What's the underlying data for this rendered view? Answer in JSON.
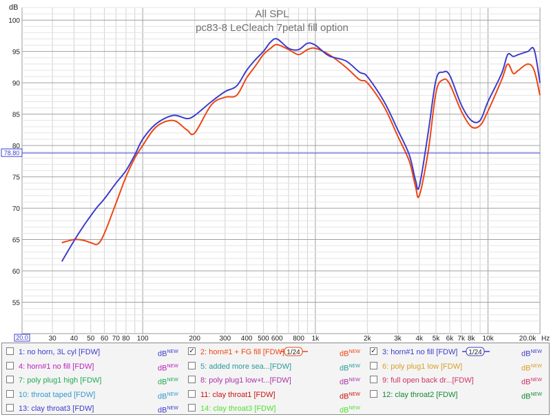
{
  "chart_data": {
    "type": "line",
    "title": "All SPL",
    "subtitle": "pc83-8 LeCleach 7petal fill option",
    "ylabel": "dB",
    "xunit": "Hz",
    "xscale": "log",
    "xlim": [
      20,
      20000
    ],
    "ylim": [
      50,
      102
    ],
    "grid": true,
    "y_ticks": [
      55,
      60,
      65,
      70,
      75,
      80,
      85,
      90,
      95,
      100
    ],
    "x_ticks": [
      {
        "v": 20,
        "label": "20.0"
      },
      {
        "v": 30,
        "label": "30"
      },
      {
        "v": 40,
        "label": "40"
      },
      {
        "v": 50,
        "label": "50"
      },
      {
        "v": 60,
        "label": "60"
      },
      {
        "v": 70,
        "label": "70"
      },
      {
        "v": 80,
        "label": "80"
      },
      {
        "v": 100,
        "label": "100"
      },
      {
        "v": 200,
        "label": "200"
      },
      {
        "v": 300,
        "label": "300"
      },
      {
        "v": 400,
        "label": "400"
      },
      {
        "v": 500,
        "label": "500"
      },
      {
        "v": 600,
        "label": "600"
      },
      {
        "v": 800,
        "label": "800"
      },
      {
        "v": 1000,
        "label": "1k"
      },
      {
        "v": 2000,
        "label": "2k"
      },
      {
        "v": 3000,
        "label": "3k"
      },
      {
        "v": 4000,
        "label": "4k"
      },
      {
        "v": 5000,
        "label": "5k"
      },
      {
        "v": 6000,
        "label": "6k"
      },
      {
        "v": 7000,
        "label": "7k"
      },
      {
        "v": 8000,
        "label": "8k"
      },
      {
        "v": 10000,
        "label": "10k"
      },
      {
        "v": 20000,
        "label": "20.0k"
      }
    ],
    "x_start_label": "20.0",
    "cursor": {
      "y": 78.8,
      "label": "78.80"
    },
    "series": [
      {
        "name": "1: no horn, 3L cyl [FDW]",
        "color": "#3c3ccc",
        "smoothing": "",
        "checked": false,
        "values": [],
        "x": []
      },
      {
        "name": "2: horn#1 + FG fill [FDW]",
        "color": "#ee4411",
        "smoothing": "1/24",
        "checked": true,
        "x": [
          34,
          40,
          45,
          50,
          55,
          60,
          70,
          80,
          90,
          100,
          120,
          150,
          180,
          200,
          250,
          300,
          350,
          400,
          450,
          500,
          550,
          600,
          700,
          800,
          900,
          1000,
          1200,
          1500,
          1800,
          2000,
          2500,
          3000,
          3500,
          3800,
          4000,
          4500,
          5000,
          5500,
          6000,
          7000,
          8000,
          9000,
          10000,
          12000,
          13000,
          14000,
          15000,
          17000,
          18500,
          20000
        ],
        "values": [
          64.5,
          65.0,
          64.9,
          64.5,
          64.3,
          66.0,
          70.8,
          75.0,
          78.0,
          80.0,
          83.0,
          84.0,
          82.5,
          82.0,
          86.5,
          87.7,
          88.0,
          90.8,
          92.7,
          94.5,
          95.5,
          96.1,
          95.3,
          94.5,
          95.3,
          95.5,
          94.5,
          92.5,
          90.5,
          90.0,
          86.2,
          81.5,
          77.5,
          73.5,
          72.0,
          79.0,
          88.5,
          90.5,
          89.8,
          85.5,
          83.0,
          83.2,
          85.5,
          90.5,
          93.0,
          91.5,
          92.0,
          93.0,
          92.0,
          88.0
        ]
      },
      {
        "name": "3: horn#1 no fill [FDW]",
        "color": "#3c3ccc",
        "smoothing": "1/24",
        "checked": true,
        "x": [
          34,
          40,
          45,
          50,
          55,
          60,
          70,
          80,
          90,
          100,
          120,
          150,
          180,
          200,
          250,
          300,
          350,
          400,
          450,
          500,
          550,
          600,
          700,
          800,
          900,
          1000,
          1200,
          1500,
          1800,
          2000,
          2500,
          3000,
          3500,
          3800,
          4000,
          4500,
          5000,
          5500,
          6000,
          7000,
          8000,
          9000,
          10000,
          12000,
          13000,
          14000,
          15000,
          17000,
          18500,
          20000
        ],
        "values": [
          61.5,
          64.8,
          67.0,
          68.8,
          70.3,
          71.5,
          74.0,
          76.0,
          78.5,
          81.0,
          83.5,
          84.8,
          84.3,
          84.8,
          87.0,
          88.6,
          89.5,
          92.0,
          93.7,
          95.0,
          96.5,
          97.0,
          95.5,
          95.3,
          96.3,
          96.0,
          94.3,
          93.5,
          91.7,
          91.0,
          87.0,
          82.5,
          78.5,
          74.5,
          73.5,
          82.0,
          90.5,
          91.7,
          91.2,
          86.5,
          84.0,
          84.0,
          87.0,
          91.5,
          94.5,
          94.2,
          94.5,
          95.0,
          95.3,
          90.0
        ]
      }
    ],
    "annotation_unit": "Hz"
  },
  "legend": {
    "db_label": "dB",
    "new_label": "NEW",
    "items": [
      {
        "label": "1: no horn, 3L cyl [FDW]",
        "color": "#3c3ccc",
        "checked": false,
        "smoothing": ""
      },
      {
        "label": "2: horn#1 + FG fill [FDW]",
        "color": "#ee4411",
        "checked": true,
        "smoothing": "1/24"
      },
      {
        "label": "3: horn#1 no fill [FDW]",
        "color": "#3c3ccc",
        "checked": true,
        "smoothing": "1/24"
      },
      {
        "label": "4: horn#1 no fill [FDW]",
        "color": "#bb22bb",
        "checked": false,
        "smoothing": ""
      },
      {
        "label": "5: added more sea...[FDW]",
        "color": "#2a9a9a",
        "checked": false,
        "smoothing": ""
      },
      {
        "label": "6: poly plug1 low [FDW]",
        "color": "#d7a02a",
        "checked": false,
        "smoothing": ""
      },
      {
        "label": "7: poly plug1 high [FDW]",
        "color": "#22aa55",
        "checked": false,
        "smoothing": ""
      },
      {
        "label": "8: poly plug1 low+t...[FDW]",
        "color": "#aa33aa",
        "checked": false,
        "smoothing": ""
      },
      {
        "label": "9: full open back dr...[FDW]",
        "color": "#cc3366",
        "checked": false,
        "smoothing": ""
      },
      {
        "label": "10: throat taped [FDW]",
        "color": "#3399cc",
        "checked": false,
        "smoothing": ""
      },
      {
        "label": "11: clay throat1 [FDW]",
        "color": "#cc1111",
        "checked": false,
        "smoothing": ""
      },
      {
        "label": "12: clay throat2 [FDW]",
        "color": "#118833",
        "checked": false,
        "smoothing": ""
      },
      {
        "label": "13: clay throat3 [FDW]",
        "color": "#3c3ccc",
        "checked": false,
        "smoothing": ""
      },
      {
        "label": "14: clay throat3 [FDW]",
        "color": "#55dd33",
        "checked": false,
        "smoothing": ""
      }
    ]
  }
}
